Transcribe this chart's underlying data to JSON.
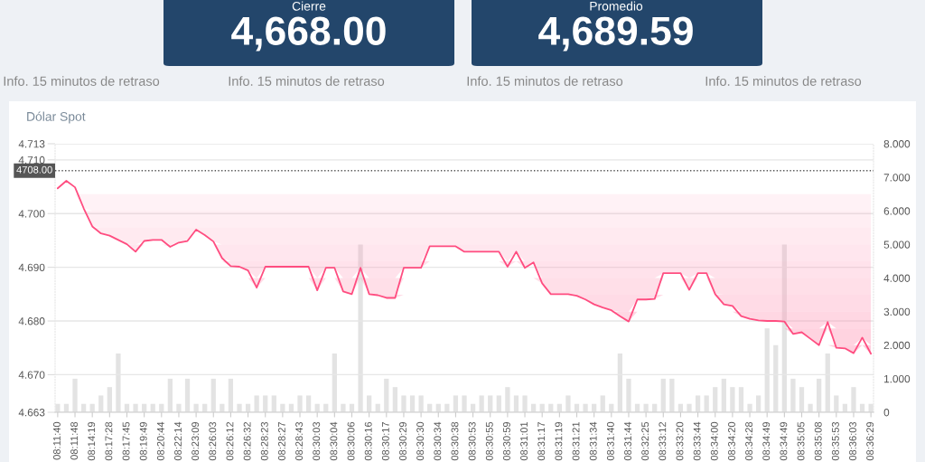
{
  "chart_data": {
    "type": "line",
    "title": "Dólar Spot",
    "annotations": [
      "Cierre",
      "4,668.00",
      "Promedio",
      "4,689.59",
      "Info. 15 minutos de retraso",
      "Info. 15 minutos de retraso",
      "Info. 15 minutos de retraso",
      "Info. 15 minutos de retraso"
    ],
    "categories": [
      "08:11:40",
      null,
      "08:11:48",
      null,
      "08:14:19",
      null,
      "08:17:28",
      null,
      "08:17:45",
      null,
      "08:19:49",
      null,
      "08:20:44",
      null,
      "08:22:14",
      null,
      "08:23:09",
      null,
      "08:26:03",
      null,
      "08:26:12",
      null,
      "08:26:32",
      null,
      "08:28:23",
      null,
      "08:28:27",
      null,
      "08:28:43",
      null,
      "08:30:03",
      null,
      "08:30:04",
      null,
      "08:30:06",
      null,
      "08:30:16",
      null,
      "08:30:17",
      null,
      "08:30:29",
      null,
      "08:30:30",
      null,
      "08:30:34",
      null,
      "08:30:38",
      null,
      "08:30:53",
      null,
      "08:30:55",
      null,
      "08:30:59",
      null,
      "08:31:01",
      null,
      "08:31:17",
      null,
      "08:31:19",
      null,
      "08:31:21",
      null,
      "08:31:34",
      null,
      "08:31:40",
      null,
      "08:31:44",
      null,
      "08:32:25",
      null,
      "08:33:12",
      null,
      "08:33:20",
      null,
      "08:33:44",
      null,
      "08:34:00",
      null,
      "08:34:20",
      null,
      "08:34:28",
      null,
      "08:34:49",
      null,
      "08:34:49",
      null,
      "08:35:05",
      null,
      "08:35:08",
      null,
      "08:35:53",
      null,
      "08:36:03",
      null,
      "08:36:29"
    ],
    "series": [
      {
        "type": "bar",
        "axis": "y2",
        "color": "#e3e3e3",
        "values": [
          0.25,
          0.25,
          1,
          0.25,
          0.25,
          0.5,
          0.75,
          1.75,
          0.25,
          0.25,
          0.25,
          0.25,
          0.25,
          1,
          0.25,
          1,
          0.25,
          0.25,
          1,
          0.25,
          1,
          0.25,
          0.25,
          0.5,
          0.5,
          0.5,
          0.25,
          0.25,
          0.5,
          0.5,
          0.25,
          0.25,
          1.75,
          0.25,
          0.25,
          5,
          0.5,
          0.25,
          1,
          0.75,
          0.5,
          0.5,
          0.5,
          0.25,
          0.25,
          0.25,
          0.5,
          0.5,
          0.25,
          0.5,
          0.5,
          0.5,
          0.75,
          0.5,
          0.5,
          0.25,
          0.25,
          0.25,
          0.25,
          0.5,
          0.25,
          0.25,
          0.25,
          0.5,
          0.25,
          1.75,
          1,
          0.25,
          0.25,
          0.25,
          1,
          1,
          0.25,
          0.25,
          0.5,
          0.5,
          0.75,
          1,
          0.75,
          0.75,
          0.25,
          0.5,
          2.5,
          2,
          5,
          1,
          0.75,
          0.25,
          1,
          1.75,
          0.5,
          0.25,
          0.75,
          0.25,
          0.25
        ]
      },
      {
        "type": "line",
        "color": "#ff4d80",
        "values": [
          4.7047,
          4.7061,
          4.7049,
          4.701,
          4.6976,
          4.6963,
          4.6959,
          4.6951,
          4.6943,
          4.6929,
          4.6949,
          4.6951,
          4.6951,
          4.6938,
          4.6946,
          4.6949,
          4.697,
          4.696,
          4.6948,
          4.6917,
          4.6902,
          4.6901,
          4.6894,
          4.6862,
          4.6901,
          4.6901,
          4.6901,
          4.6901,
          4.6901,
          4.6901,
          4.6857,
          4.6899,
          4.6899,
          4.6855,
          4.685,
          4.6899,
          4.685,
          4.6848,
          4.6843,
          4.6843,
          4.6899,
          4.6899,
          4.6899,
          4.6939,
          4.6939,
          4.6939,
          4.6939,
          4.6929,
          4.6929,
          4.6929,
          4.6929,
          4.6929,
          4.6901,
          4.6929,
          4.6899,
          4.6909,
          4.687,
          4.685,
          4.685,
          4.685,
          4.6847,
          4.684,
          4.6831,
          4.6825,
          4.682,
          4.6809,
          4.6799,
          4.684,
          4.684,
          4.6841,
          4.6889,
          4.6889,
          4.6889,
          4.6858,
          4.6889,
          4.6889,
          4.685,
          4.6831,
          4.6828,
          4.6809,
          4.6804,
          4.6801,
          4.68,
          4.68,
          4.6799,
          4.6776,
          4.6779,
          4.6767,
          4.6755,
          4.6798,
          4.675,
          4.6749,
          4.674,
          4.6769,
          4.6739
        ]
      }
    ],
    "ylim": [
      4.663,
      4.713
    ],
    "yticks": [
      4.663,
      {
        "value": 4.67,
        "label": "4.670"
      },
      {
        "value": 4.68,
        "label": "4.680"
      },
      {
        "value": 4.69,
        "label": "4.690"
      },
      {
        "value": 4.7,
        "label": "4.700"
      },
      {
        "value": 4.71,
        "label": "4.710"
      },
      4.713
    ],
    "y2lim": [
      0,
      8
    ],
    "y2ticks": [
      0,
      {
        "value": 1,
        "label": "1.000"
      },
      {
        "value": 2,
        "label": "2.000"
      },
      {
        "value": 3,
        "label": "3.000"
      },
      {
        "value": 4,
        "label": "4.000"
      },
      {
        "value": 5,
        "label": "5.000"
      },
      {
        "value": 6,
        "label": "6.000"
      },
      {
        "value": 7,
        "label": "7.000"
      },
      {
        "value": 8,
        "label": "8.000"
      }
    ],
    "ref_lines": [
      {
        "axis": "y",
        "value": 4.708,
        "label": "4708.00",
        "color": "#555555",
        "line_style": "dotted"
      }
    ],
    "grid": "y"
  }
}
